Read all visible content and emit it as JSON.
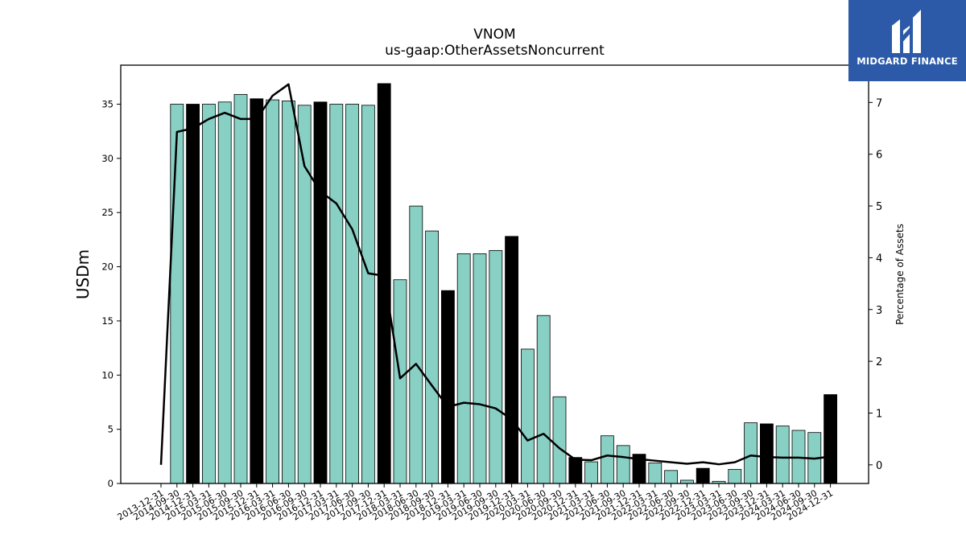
{
  "chart_data": {
    "type": "bar",
    "title": "VNOM",
    "subtitle": "us-gaap:OtherAssetsNoncurrent",
    "ylabel": "USDm",
    "y2label": "Percentage of Assets",
    "ylim": [
      0,
      38.6
    ],
    "y2lim": [
      -0.36,
      7.72
    ],
    "yticks": [
      0,
      5,
      10,
      15,
      20,
      25,
      30,
      35
    ],
    "y2ticks": [
      0,
      1,
      2,
      3,
      4,
      5,
      6,
      7
    ],
    "grid": false,
    "colors": {
      "quarter_bar": "#88d0c4",
      "annual_bar": "#000000",
      "line": "#000000"
    },
    "categories": [
      "2013-12-31",
      "2014-09-30",
      "2014-12-31",
      "2015-03-31",
      "2015-06-30",
      "2015-09-30",
      "2015-12-31",
      "2016-03-31",
      "2016-06-30",
      "2016-09-30",
      "2016-12-31",
      "2017-03-31",
      "2017-06-30",
      "2017-09-30",
      "2017-12-31",
      "2018-03-31",
      "2018-06-30",
      "2018-09-30",
      "2018-12-31",
      "2019-03-31",
      "2019-06-30",
      "2019-09-30",
      "2019-12-31",
      "2020-03-31",
      "2020-06-30",
      "2020-09-30",
      "2020-12-31",
      "2021-03-31",
      "2021-06-30",
      "2021-09-30",
      "2021-12-31",
      "2022-03-31",
      "2022-06-30",
      "2022-09-30",
      "2022-12-31",
      "2023-03-31",
      "2023-06-30",
      "2023-09-30",
      "2023-12-31",
      "2024-03-31",
      "2024-06-30",
      "2024-09-30",
      "2024-12-31"
    ],
    "series": [
      {
        "kind": "bar",
        "axis": "left",
        "values": [
          null,
          35.0,
          35.0,
          35.0,
          35.2,
          35.9,
          35.5,
          35.4,
          35.3,
          34.9,
          35.2,
          35.0,
          35.0,
          34.9,
          36.9,
          18.8,
          25.6,
          23.3,
          17.8,
          21.2,
          21.2,
          21.5,
          22.8,
          12.4,
          15.5,
          8.0,
          2.4,
          2.0,
          4.4,
          3.5,
          2.7,
          1.9,
          1.2,
          0.3,
          1.4,
          0.2,
          1.3,
          5.6,
          5.5,
          5.3,
          4.9,
          4.7,
          8.2
        ],
        "annual": [
          false,
          false,
          true,
          false,
          false,
          false,
          true,
          false,
          false,
          false,
          true,
          false,
          false,
          false,
          true,
          false,
          false,
          false,
          true,
          false,
          false,
          false,
          true,
          false,
          false,
          false,
          true,
          false,
          false,
          false,
          true,
          false,
          false,
          false,
          true,
          false,
          false,
          false,
          true,
          false,
          false,
          false,
          true
        ]
      },
      {
        "kind": "line",
        "axis": "right",
        "values": [
          0.0,
          6.43,
          6.5,
          6.68,
          6.8,
          6.68,
          6.68,
          7.13,
          7.35,
          5.77,
          5.28,
          5.05,
          4.55,
          3.7,
          3.65,
          1.67,
          1.95,
          1.53,
          1.12,
          1.2,
          1.17,
          1.09,
          0.88,
          0.47,
          0.6,
          0.32,
          0.1,
          0.09,
          0.18,
          0.15,
          0.11,
          0.08,
          0.05,
          0.02,
          0.05,
          0.01,
          0.05,
          0.18,
          0.15,
          0.14,
          0.14,
          0.12,
          0.16
        ]
      }
    ]
  },
  "logo": {
    "text": "MIDGARD FINANCE"
  }
}
